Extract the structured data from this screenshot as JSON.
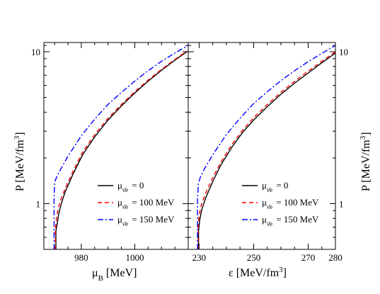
{
  "chart_data": [
    {
      "type": "line",
      "panel": "left",
      "xlabel_main": "μ",
      "xlabel_sub": "B",
      "xlabel_rest": " [MeV]",
      "ylabel": "P [MeV/fm³]",
      "ylabel_main": "P [MeV/fm",
      "ylabel_sup": "3",
      "ylabel_end": "]",
      "y_scale": "log",
      "xlim": [
        966,
        1020
      ],
      "ylim": [
        0.5,
        11.5
      ],
      "x_ticks": [
        980,
        1000
      ],
      "x_tick_labels": [
        "980",
        "1000"
      ],
      "y_ticks": [
        1,
        10
      ],
      "y_tick_labels": [
        "1",
        "10"
      ],
      "legend_placement": "lower-right",
      "series": [
        {
          "name_main": "μ",
          "name_sub": "ν̄e",
          "name_rest": " = 0",
          "color": "#000000",
          "dash": "",
          "x": [
            970.5,
            970.5,
            971.0,
            971.5,
            972.5,
            974.0,
            977.0,
            980.5,
            985.0,
            990.0,
            995.0,
            1000.0,
            1005.0,
            1010.0,
            1015.0,
            1019.5
          ],
          "y": [
            0.5,
            0.66,
            0.74,
            0.85,
            1.0,
            1.2,
            1.58,
            2.1,
            2.75,
            3.55,
            4.4,
            5.35,
            6.4,
            7.55,
            8.8,
            10.0
          ]
        },
        {
          "name_main": "μ",
          "name_sub": "ν̄e",
          "name_rest": " = 100 MeV",
          "color": "#ff0000",
          "dash": "6,4",
          "x": [
            970.3,
            970.3,
            970.7,
            971.3,
            972.3,
            974.0,
            977.0,
            980.5,
            985.0,
            990.0,
            995.0,
            1000.0,
            1005.0,
            1010.0,
            1015.0,
            1019.5
          ],
          "y": [
            0.5,
            0.68,
            0.8,
            0.92,
            1.06,
            1.26,
            1.65,
            2.18,
            2.85,
            3.65,
            4.5,
            5.45,
            6.5,
            7.65,
            8.9,
            10.1
          ]
        },
        {
          "name_main": "μ",
          "name_sub": "ν̄e",
          "name_rest": " = 150 MeV",
          "color": "#0000ff",
          "dash": "8,3,2,3",
          "x": [
            969.8,
            969.8,
            970.0,
            970.8,
            972.0,
            975.0,
            980.0,
            985.0,
            990.0,
            995.0,
            1000.0,
            1005.0,
            1010.0,
            1015.0,
            1020.0
          ],
          "y": [
            0.5,
            1.05,
            1.38,
            1.5,
            1.65,
            2.05,
            2.8,
            3.6,
            4.5,
            5.4,
            6.4,
            7.5,
            8.65,
            9.8,
            11.0
          ]
        }
      ]
    },
    {
      "type": "line",
      "panel": "right",
      "xlabel_main": "ε [MeV/fm",
      "xlabel_sup": "3",
      "xlabel_end": "]",
      "ylabel_main": "P [MeV/fm",
      "ylabel_sup": "3",
      "ylabel_end": "]",
      "y_scale": "log",
      "xlim": [
        226,
        280
      ],
      "ylim": [
        0.5,
        11.5
      ],
      "x_ticks": [
        230,
        250,
        270,
        280
      ],
      "x_tick_labels": [
        "230",
        "250",
        "270",
        "280"
      ],
      "y_ticks": [
        1,
        10
      ],
      "y_tick_labels": [
        "1",
        "10"
      ],
      "legend_placement": "lower-right",
      "series": [
        {
          "name_main": "μ",
          "name_sub": "ν̄e",
          "name_rest": " = 0",
          "color": "#000000",
          "dash": "",
          "x": [
            229.8,
            229.8,
            230.2,
            231.0,
            232.5,
            235.0,
            238.0,
            242.0,
            246.0,
            250.0,
            255.0,
            260.0,
            265.0,
            270.0,
            275.0,
            280.0
          ],
          "y": [
            0.5,
            0.66,
            0.78,
            0.92,
            1.1,
            1.4,
            1.8,
            2.35,
            2.95,
            3.55,
            4.35,
            5.25,
            6.2,
            7.25,
            8.45,
            9.8
          ]
        },
        {
          "name_main": "μ",
          "name_sub": "ν̄e",
          "name_rest": " = 100 MeV",
          "color": "#ff0000",
          "dash": "6,4",
          "x": [
            229.6,
            229.6,
            230.0,
            230.8,
            232.3,
            234.8,
            238.0,
            242.0,
            246.0,
            250.0,
            255.0,
            260.0,
            265.0,
            270.0,
            275.0,
            280.0
          ],
          "y": [
            0.5,
            0.7,
            0.84,
            0.98,
            1.16,
            1.46,
            1.88,
            2.45,
            3.05,
            3.68,
            4.5,
            5.4,
            6.38,
            7.45,
            8.65,
            10.0
          ]
        },
        {
          "name_main": "μ",
          "name_sub": "ν̄e",
          "name_rest": " = 150 MeV",
          "color": "#0000ff",
          "dash": "8,3,2,3",
          "x": [
            229.4,
            229.4,
            229.7,
            230.5,
            232.0,
            235.0,
            240.0,
            245.0,
            250.0,
            255.0,
            260.0,
            265.0,
            270.0,
            275.0,
            280.0
          ],
          "y": [
            0.5,
            1.05,
            1.35,
            1.5,
            1.7,
            2.1,
            2.85,
            3.65,
            4.55,
            5.45,
            6.45,
            7.5,
            8.6,
            9.75,
            11.0
          ]
        }
      ]
    }
  ]
}
